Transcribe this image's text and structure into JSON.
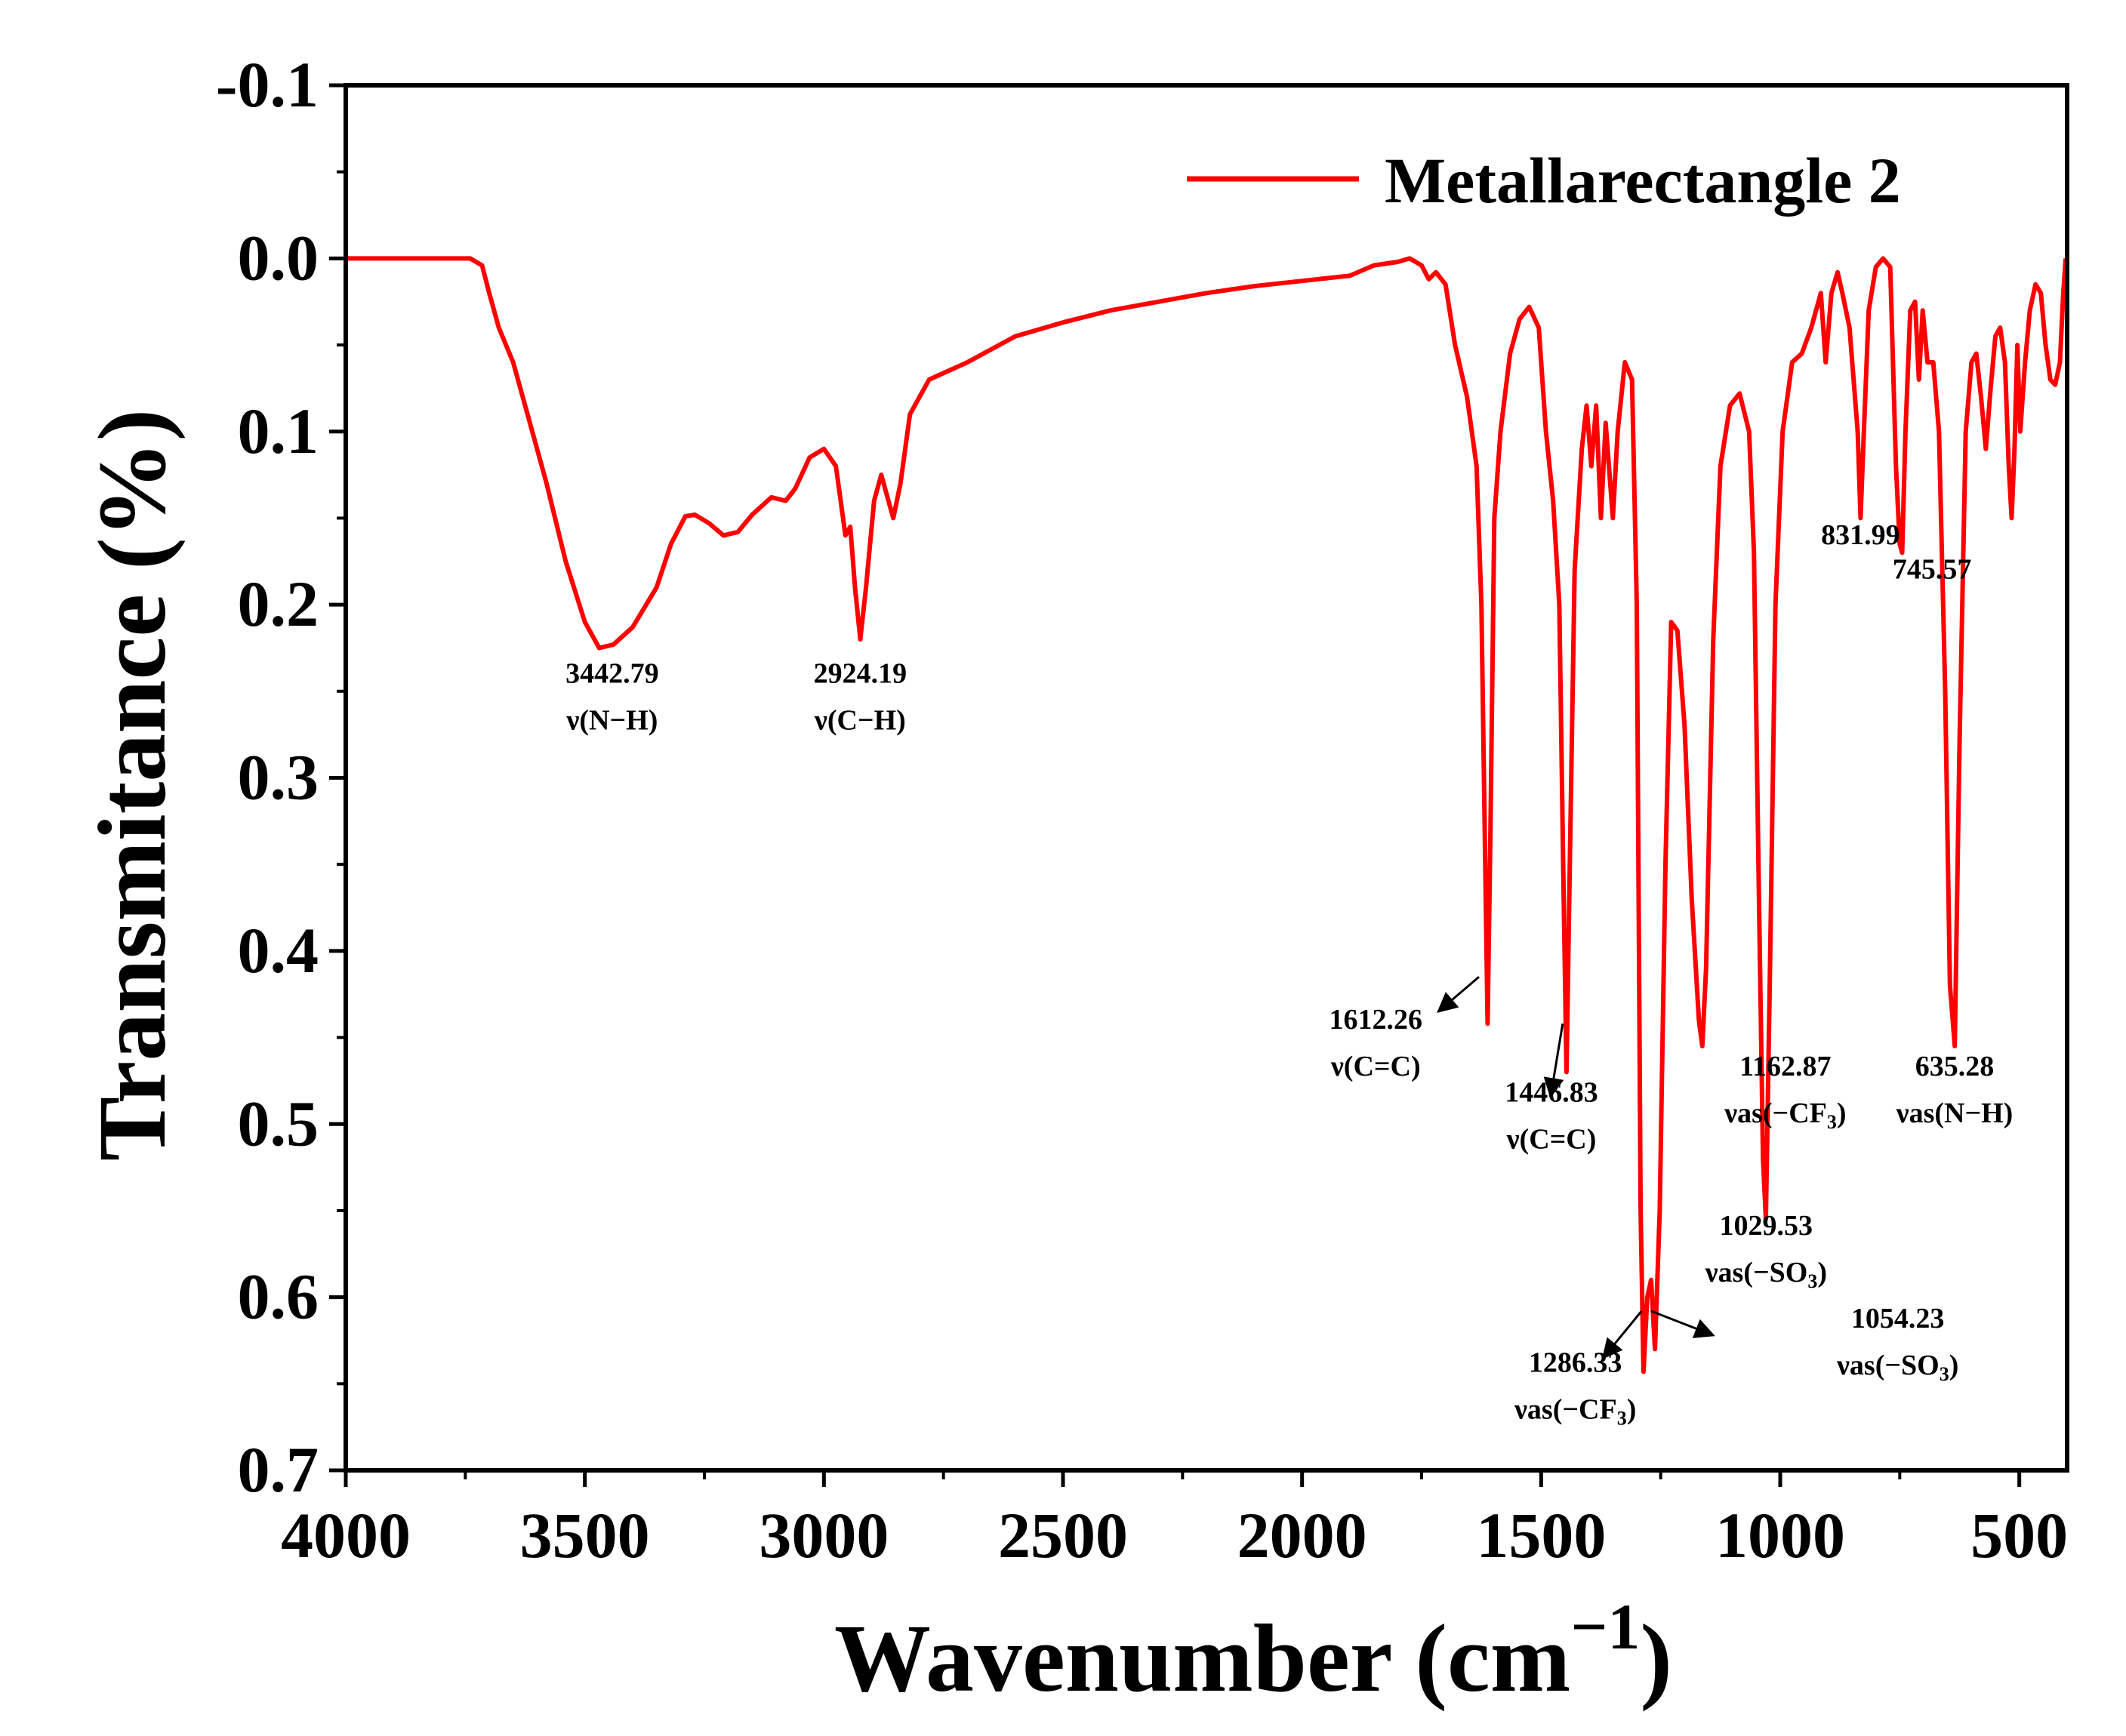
{
  "chart_data": {
    "type": "line",
    "title": "",
    "xlabel": "Wavenumber (cm",
    "xlabel_sup": "−1",
    "xlabel_close": ")",
    "ylabel": "Transmitance (%)",
    "xlim": [
      4000,
      400
    ],
    "ylim": [
      0.7,
      -0.1
    ],
    "y_inverted": true,
    "xticks": [
      4000,
      3500,
      3000,
      2500,
      2000,
      1500,
      1000,
      500
    ],
    "xtick_labels": [
      "4000",
      "3500",
      "3000",
      "2500",
      "2000",
      "1500",
      "1000",
      "500"
    ],
    "yticks": [
      -0.1,
      0.0,
      0.1,
      0.2,
      0.3,
      0.4,
      0.5,
      0.6,
      0.7
    ],
    "ytick_labels": [
      "-0.1",
      "0.0",
      "0.1",
      "0.2",
      "0.3",
      "0.4",
      "0.5",
      "0.6",
      "0.7"
    ],
    "grid": false,
    "legend_position": "top-right",
    "series": [
      {
        "name": "Metallarectangle 2",
        "color": "#ff0000",
        "points": [
          [
            4000,
            0.0
          ],
          [
            3850,
            0.0
          ],
          [
            3740,
            0.0
          ],
          [
            3715,
            0.004
          ],
          [
            3700,
            0.02
          ],
          [
            3680,
            0.04
          ],
          [
            3650,
            0.06
          ],
          [
            3620,
            0.09
          ],
          [
            3580,
            0.13
          ],
          [
            3540,
            0.175
          ],
          [
            3500,
            0.21
          ],
          [
            3470,
            0.225
          ],
          [
            3440,
            0.223
          ],
          [
            3400,
            0.213
          ],
          [
            3350,
            0.19
          ],
          [
            3320,
            0.165
          ],
          [
            3290,
            0.149
          ],
          [
            3270,
            0.148
          ],
          [
            3240,
            0.153
          ],
          [
            3210,
            0.16
          ],
          [
            3180,
            0.158
          ],
          [
            3150,
            0.148
          ],
          [
            3110,
            0.138
          ],
          [
            3080,
            0.14
          ],
          [
            3060,
            0.133
          ],
          [
            3030,
            0.115
          ],
          [
            3000,
            0.11
          ],
          [
            2975,
            0.12
          ],
          [
            2955,
            0.16
          ],
          [
            2945,
            0.155
          ],
          [
            2935,
            0.19
          ],
          [
            2924,
            0.22
          ],
          [
            2912,
            0.19
          ],
          [
            2895,
            0.14
          ],
          [
            2880,
            0.125
          ],
          [
            2865,
            0.14
          ],
          [
            2855,
            0.15
          ],
          [
            2840,
            0.13
          ],
          [
            2820,
            0.09
          ],
          [
            2780,
            0.07
          ],
          [
            2700,
            0.06
          ],
          [
            2600,
            0.045
          ],
          [
            2500,
            0.037
          ],
          [
            2400,
            0.03
          ],
          [
            2300,
            0.025
          ],
          [
            2200,
            0.02
          ],
          [
            2100,
            0.016
          ],
          [
            2000,
            0.013
          ],
          [
            1900,
            0.01
          ],
          [
            1850,
            0.004
          ],
          [
            1800,
            0.002
          ],
          [
            1775,
            0.0
          ],
          [
            1750,
            0.004
          ],
          [
            1735,
            0.012
          ],
          [
            1720,
            0.008
          ],
          [
            1700,
            0.015
          ],
          [
            1680,
            0.05
          ],
          [
            1655,
            0.08
          ],
          [
            1635,
            0.12
          ],
          [
            1625,
            0.2
          ],
          [
            1618,
            0.33
          ],
          [
            1612,
            0.442
          ],
          [
            1606,
            0.33
          ],
          [
            1598,
            0.15
          ],
          [
            1585,
            0.1
          ],
          [
            1565,
            0.055
          ],
          [
            1545,
            0.035
          ],
          [
            1525,
            0.028
          ],
          [
            1505,
            0.04
          ],
          [
            1490,
            0.1
          ],
          [
            1475,
            0.14
          ],
          [
            1462,
            0.2
          ],
          [
            1454,
            0.35
          ],
          [
            1447,
            0.47
          ],
          [
            1440,
            0.35
          ],
          [
            1430,
            0.18
          ],
          [
            1415,
            0.11
          ],
          [
            1405,
            0.085
          ],
          [
            1395,
            0.12
          ],
          [
            1385,
            0.085
          ],
          [
            1375,
            0.15
          ],
          [
            1365,
            0.095
          ],
          [
            1350,
            0.15
          ],
          [
            1340,
            0.1
          ],
          [
            1325,
            0.06
          ],
          [
            1310,
            0.07
          ],
          [
            1300,
            0.2
          ],
          [
            1292,
            0.55
          ],
          [
            1286,
            0.643
          ],
          [
            1278,
            0.6
          ],
          [
            1270,
            0.59
          ],
          [
            1262,
            0.63
          ],
          [
            1252,
            0.55
          ],
          [
            1240,
            0.35
          ],
          [
            1228,
            0.21
          ],
          [
            1215,
            0.215
          ],
          [
            1200,
            0.27
          ],
          [
            1185,
            0.37
          ],
          [
            1170,
            0.44
          ],
          [
            1163,
            0.455
          ],
          [
            1155,
            0.41
          ],
          [
            1140,
            0.22
          ],
          [
            1125,
            0.12
          ],
          [
            1105,
            0.085
          ],
          [
            1085,
            0.078
          ],
          [
            1065,
            0.1
          ],
          [
            1055,
            0.17
          ],
          [
            1045,
            0.36
          ],
          [
            1036,
            0.52
          ],
          [
            1030,
            0.555
          ],
          [
            1022,
            0.42
          ],
          [
            1010,
            0.2
          ],
          [
            995,
            0.1
          ],
          [
            975,
            0.06
          ],
          [
            955,
            0.055
          ],
          [
            935,
            0.04
          ],
          [
            915,
            0.02
          ],
          [
            905,
            0.06
          ],
          [
            893,
            0.02
          ],
          [
            880,
            0.008
          ],
          [
            870,
            0.02
          ],
          [
            855,
            0.04
          ],
          [
            838,
            0.1
          ],
          [
            832,
            0.15
          ],
          [
            825,
            0.1
          ],
          [
            815,
            0.03
          ],
          [
            800,
            0.005
          ],
          [
            785,
            0.0
          ],
          [
            770,
            0.005
          ],
          [
            758,
            0.12
          ],
          [
            750,
            0.165
          ],
          [
            745,
            0.17
          ],
          [
            738,
            0.1
          ],
          [
            728,
            0.03
          ],
          [
            718,
            0.025
          ],
          [
            710,
            0.07
          ],
          [
            702,
            0.03
          ],
          [
            692,
            0.06
          ],
          [
            680,
            0.06
          ],
          [
            668,
            0.1
          ],
          [
            655,
            0.25
          ],
          [
            645,
            0.42
          ],
          [
            635,
            0.455
          ],
          [
            625,
            0.28
          ],
          [
            612,
            0.1
          ],
          [
            600,
            0.06
          ],
          [
            590,
            0.055
          ],
          [
            580,
            0.08
          ],
          [
            570,
            0.11
          ],
          [
            560,
            0.075
          ],
          [
            550,
            0.045
          ],
          [
            540,
            0.04
          ],
          [
            530,
            0.06
          ],
          [
            522,
            0.12
          ],
          [
            516,
            0.15
          ],
          [
            510,
            0.11
          ],
          [
            504,
            0.05
          ],
          [
            498,
            0.1
          ],
          [
            488,
            0.06
          ],
          [
            478,
            0.03
          ],
          [
            466,
            0.015
          ],
          [
            455,
            0.02
          ],
          [
            445,
            0.05
          ],
          [
            435,
            0.07
          ],
          [
            425,
            0.073
          ],
          [
            415,
            0.06
          ],
          [
            408,
            0.02
          ],
          [
            403,
            0.0
          ]
        ]
      }
    ],
    "annotations": [
      {
        "lines": [
          "3442.79",
          "ν(N−H)"
        ],
        "x": 3442.79,
        "y": 0.225,
        "label_y": 0.245
      },
      {
        "lines": [
          "2924.19",
          "ν(C−H)"
        ],
        "x": 2924.19,
        "y": 0.22,
        "label_y": 0.245
      },
      {
        "lines": [
          "1612.26",
          "ν(C=C)"
        ],
        "x": 1612.26,
        "y": 0.445,
        "label_y": 0.445,
        "arrow_from": [
          1630,
          0.415
        ],
        "arrow_to": [
          1715,
          0.435
        ]
      },
      {
        "lines": [
          "1446.83",
          "ν(C=C)"
        ],
        "x": 1446.83,
        "y": 0.47,
        "label_y": 0.487,
        "arrow_from": [
          1455,
          0.442
        ],
        "arrow_to": [
          1480,
          0.484
        ]
      },
      {
        "lines": [
          "1162.87",
          "νas(−CF3)"
        ],
        "x": 1162.87,
        "y": 0.455,
        "label_y": 0.472
      },
      {
        "lines": [
          "1029.53",
          "νas(−SO3)"
        ],
        "x": 1029.53,
        "y": 0.555,
        "label_y": 0.564
      },
      {
        "lines": [
          "1286.33",
          "νas(−CF3)"
        ],
        "x": 1286.33,
        "y": 0.643,
        "label_y": 0.643,
        "arrow_from": [
          1290,
          0.608
        ],
        "arrow_to": [
          1370,
          0.635
        ]
      },
      {
        "lines": [
          "1054.23",
          "νas(−SO3)"
        ],
        "x": 1054.23,
        "y": 0.59,
        "label_y": 0.622,
        "arrow_from": [
          1270,
          0.608
        ],
        "arrow_to": [
          1140,
          0.622
        ]
      },
      {
        "lines": [
          "831.99"
        ],
        "x": 831.99,
        "y": 0.15,
        "label_y": 0.165
      },
      {
        "lines": [
          "745.57"
        ],
        "x": 745.57,
        "y": 0.17,
        "label_y": 0.185
      },
      {
        "lines": [
          "635.28",
          "νas(N−H)"
        ],
        "x": 635.28,
        "y": 0.455,
        "label_y": 0.472
      }
    ]
  }
}
